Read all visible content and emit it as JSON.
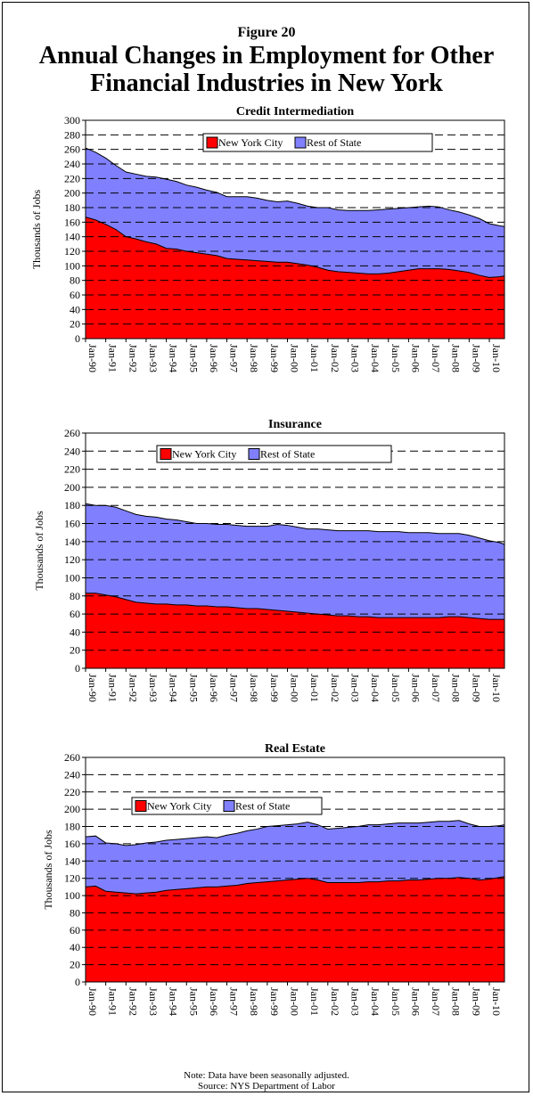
{
  "header": {
    "figure_label": "Figure 20",
    "title_line1": "Annual Changes in Employment for Other",
    "title_line2": "Financial Industries in New York"
  },
  "footnote": {
    "note": "Note: Data have been seasonally adjusted.",
    "source": "Source: NYS Department of Labor"
  },
  "colors": {
    "nyc": "#ff0000",
    "rest": "#8080ff"
  },
  "chart_data": [
    {
      "type": "area",
      "stacked": true,
      "title": "Credit Intermediation",
      "ylabel": "Thousands of Jobs",
      "ylim": [
        0,
        300
      ],
      "ytick_step": 20,
      "xlim": [
        1990.0,
        2010.75
      ],
      "xticks": [
        "Jan-90",
        "Jan-91",
        "Jan-92",
        "Jan-93",
        "Jan-94",
        "Jan-95",
        "Jan-96",
        "Jan-97",
        "Jan-98",
        "Jan-99",
        "Jan-00",
        "Jan-01",
        "Jan-02",
        "Jan-03",
        "Jan-04",
        "Jan-05",
        "Jan-06",
        "Jan-07",
        "Jan-08",
        "Jan-09",
        "Jan-10"
      ],
      "grid": "horizontal dashed",
      "legend": "top-center",
      "x": [
        1990.0,
        1990.5,
        1991.0,
        1991.5,
        1992.0,
        1992.5,
        1993.0,
        1993.5,
        1994.0,
        1994.5,
        1995.0,
        1995.5,
        1996.0,
        1996.5,
        1997.0,
        1997.5,
        1998.0,
        1998.5,
        1999.0,
        1999.5,
        2000.0,
        2000.5,
        2001.0,
        2001.5,
        2002.0,
        2002.5,
        2003.0,
        2003.5,
        2004.0,
        2004.5,
        2005.0,
        2005.5,
        2006.0,
        2006.5,
        2007.0,
        2007.5,
        2008.0,
        2008.5,
        2009.0,
        2009.5,
        2010.0,
        2010.5,
        2010.75
      ],
      "series": [
        {
          "name": "New York City",
          "values": [
            167,
            163,
            157,
            150,
            140,
            137,
            133,
            130,
            124,
            123,
            120,
            118,
            116,
            114,
            110,
            109,
            108,
            107,
            106,
            105,
            105,
            103,
            101,
            98,
            94,
            92,
            91,
            90,
            89,
            89,
            90,
            92,
            94,
            96,
            96,
            96,
            95,
            93,
            91,
            87,
            84,
            85,
            86
          ]
        },
        {
          "name": "Rest of State",
          "values": [
            95,
            93,
            91,
            88,
            89,
            89,
            90,
            92,
            95,
            93,
            91,
            90,
            88,
            87,
            85,
            86,
            87,
            86,
            84,
            83,
            84,
            83,
            81,
            82,
            86,
            85,
            85,
            86,
            87,
            88,
            88,
            87,
            86,
            85,
            86,
            85,
            82,
            81,
            79,
            78,
            74,
            70,
            68
          ]
        }
      ]
    },
    {
      "type": "area",
      "stacked": true,
      "title": "Insurance",
      "ylabel": "Thousands of Jobs",
      "ylim": [
        0,
        260
      ],
      "ytick_step": 20,
      "xlim": [
        1990.0,
        2010.75
      ],
      "xticks": [
        "Jan-90",
        "Jan-91",
        "Jan-92",
        "Jan-93",
        "Jan-94",
        "Jan-95",
        "Jan-96",
        "Jan-97",
        "Jan-98",
        "Jan-99",
        "Jan-00",
        "Jan-01",
        "Jan-02",
        "Jan-03",
        "Jan-04",
        "Jan-05",
        "Jan-06",
        "Jan-07",
        "Jan-08",
        "Jan-09",
        "Jan-10"
      ],
      "grid": "horizontal dashed",
      "legend": "top-center",
      "x": [
        1990.0,
        1990.5,
        1991.0,
        1991.5,
        1992.0,
        1992.5,
        1993.0,
        1993.5,
        1994.0,
        1994.5,
        1995.0,
        1995.5,
        1996.0,
        1996.5,
        1997.0,
        1997.5,
        1998.0,
        1998.5,
        1999.0,
        1999.5,
        2000.0,
        2000.5,
        2001.0,
        2001.5,
        2002.0,
        2002.5,
        2003.0,
        2003.5,
        2004.0,
        2004.5,
        2005.0,
        2005.5,
        2006.0,
        2006.5,
        2007.0,
        2007.5,
        2008.0,
        2008.5,
        2009.0,
        2009.5,
        2010.0,
        2010.5,
        2010.75
      ],
      "series": [
        {
          "name": "New York City",
          "values": [
            83,
            83,
            81,
            79,
            76,
            73,
            72,
            71,
            71,
            70,
            70,
            69,
            69,
            68,
            68,
            67,
            66,
            66,
            65,
            64,
            63,
            62,
            61,
            60,
            59,
            58,
            58,
            57,
            57,
            56,
            56,
            56,
            56,
            56,
            56,
            56,
            57,
            57,
            56,
            55,
            54,
            54,
            54
          ]
        },
        {
          "name": "Rest of State",
          "values": [
            99,
            97,
            99,
            99,
            98,
            97,
            96,
            96,
            94,
            94,
            92,
            91,
            91,
            91,
            91,
            91,
            91,
            91,
            92,
            95,
            95,
            94,
            93,
            94,
            94,
            94,
            94,
            95,
            95,
            95,
            95,
            95,
            94,
            94,
            94,
            93,
            92,
            92,
            91,
            89,
            87,
            85,
            83
          ]
        }
      ]
    },
    {
      "type": "area",
      "stacked": true,
      "title": "Real Estate",
      "ylabel": "Thousands of Jobs",
      "ylim": [
        0,
        260
      ],
      "ytick_step": 20,
      "xlim": [
        1990.0,
        2010.75
      ],
      "xticks": [
        "Jan-90",
        "Jan-91",
        "Jan-92",
        "Jan-93",
        "Jan-94",
        "Jan-95",
        "Jan-96",
        "Jan-97",
        "Jan-98",
        "Jan-99",
        "Jan-00",
        "Jan-01",
        "Jan-02",
        "Jan-03",
        "Jan-04",
        "Jan-05",
        "Jan-06",
        "Jan-07",
        "Jan-08",
        "Jan-09",
        "Jan-10"
      ],
      "grid": "horizontal dashed",
      "legend": "top-left",
      "x": [
        1990.0,
        1990.5,
        1991.0,
        1991.5,
        1992.0,
        1992.5,
        1993.0,
        1993.5,
        1994.0,
        1994.5,
        1995.0,
        1995.5,
        1996.0,
        1996.5,
        1997.0,
        1997.5,
        1998.0,
        1998.5,
        1999.0,
        1999.5,
        2000.0,
        2000.5,
        2001.0,
        2001.5,
        2002.0,
        2002.5,
        2003.0,
        2003.5,
        2004.0,
        2004.5,
        2005.0,
        2005.5,
        2006.0,
        2006.5,
        2007.0,
        2007.5,
        2008.0,
        2008.5,
        2009.0,
        2009.5,
        2010.0,
        2010.5,
        2010.75
      ],
      "series": [
        {
          "name": "New York City",
          "values": [
            110,
            111,
            105,
            104,
            103,
            102,
            103,
            104,
            106,
            107,
            108,
            109,
            110,
            110,
            111,
            112,
            114,
            115,
            116,
            117,
            118,
            119,
            120,
            118,
            115,
            115,
            115,
            115,
            116,
            116,
            117,
            117,
            118,
            118,
            119,
            120,
            120,
            121,
            120,
            118,
            119,
            121,
            122
          ]
        },
        {
          "name": "Rest of State",
          "values": [
            58,
            58,
            56,
            56,
            55,
            57,
            58,
            58,
            58,
            58,
            58,
            58,
            58,
            57,
            59,
            60,
            61,
            62,
            64,
            64,
            64,
            64,
            65,
            64,
            62,
            63,
            64,
            65,
            66,
            66,
            66,
            67,
            66,
            66,
            66,
            66,
            66,
            66,
            63,
            62,
            61,
            60,
            60
          ]
        }
      ]
    }
  ]
}
